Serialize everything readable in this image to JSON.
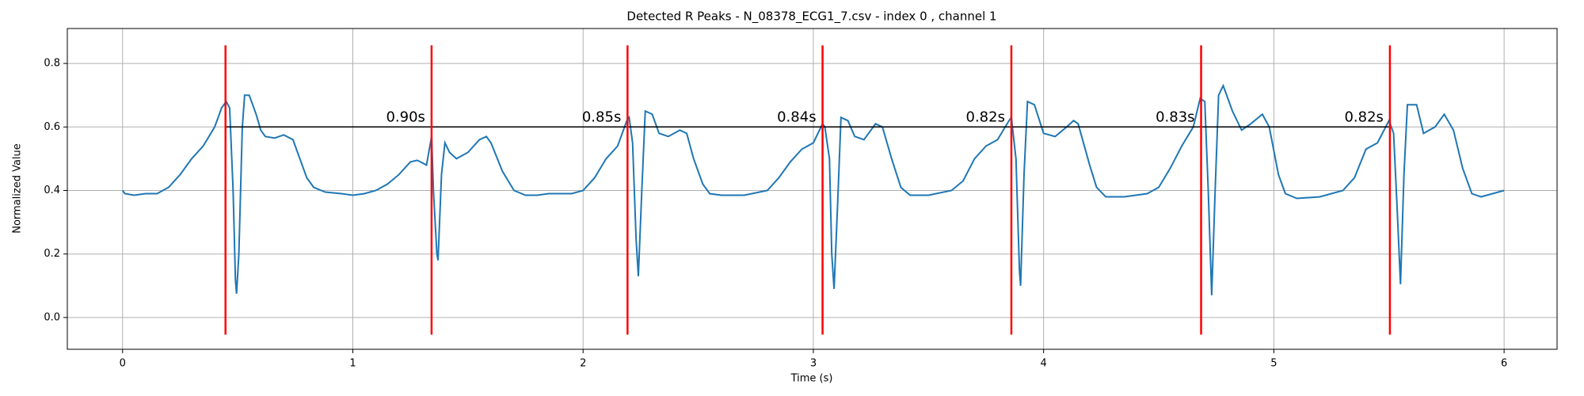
{
  "chart_data": {
    "type": "line",
    "title": "Detected R Peaks - N_08378_ECG1_7.csv - index 0 , channel 1",
    "x_label": "Time (s)",
    "y_label": "Normalized Value",
    "xlim": [
      -0.24,
      6.23
    ],
    "ylim": [
      -0.1,
      0.91
    ],
    "xticks": [
      0,
      1,
      2,
      3,
      4,
      5,
      6
    ],
    "yticks": [
      {
        "value": 0,
        "label": "0.0"
      },
      0.2,
      0.4,
      0.6,
      0.8
    ],
    "grid": true,
    "x": [
      0,
      0.01,
      0.05,
      0.1,
      0.15,
      0.2,
      0.25,
      0.3,
      0.35,
      0.4,
      0.43,
      0.45,
      0.465,
      0.48,
      0.49,
      0.495,
      0.505,
      0.52,
      0.53,
      0.55,
      0.58,
      0.6,
      0.62,
      0.66,
      0.7,
      0.74,
      0.77,
      0.8,
      0.83,
      0.88,
      0.95,
      1.0,
      1.05,
      1.1,
      1.15,
      1.2,
      1.25,
      1.28,
      1.32,
      1.342,
      1.35,
      1.365,
      1.37,
      1.385,
      1.4,
      1.42,
      1.45,
      1.5,
      1.55,
      1.58,
      1.6,
      1.65,
      1.7,
      1.75,
      1.8,
      1.85,
      1.95,
      2.0,
      2.05,
      2.1,
      2.15,
      2.19,
      2.2,
      2.215,
      2.23,
      2.24,
      2.255,
      2.27,
      2.3,
      2.33,
      2.37,
      2.42,
      2.45,
      2.48,
      2.52,
      2.55,
      2.6,
      2.7,
      2.8,
      2.85,
      2.9,
      2.95,
      3.0,
      3.04,
      3.05,
      3.07,
      3.08,
      3.09,
      3.105,
      3.12,
      3.15,
      3.18,
      3.22,
      3.27,
      3.3,
      3.34,
      3.38,
      3.42,
      3.5,
      3.6,
      3.65,
      3.7,
      3.75,
      3.8,
      3.85,
      3.86,
      3.88,
      3.895,
      3.9,
      3.915,
      3.93,
      3.96,
      4.0,
      4.05,
      4.1,
      4.13,
      4.15,
      4.2,
      4.23,
      4.27,
      4.35,
      4.45,
      4.5,
      4.55,
      4.6,
      4.65,
      4.68,
      4.7,
      4.715,
      4.73,
      4.745,
      4.76,
      4.78,
      4.82,
      4.86,
      4.9,
      4.95,
      4.98,
      5.02,
      5.05,
      5.1,
      5.2,
      5.3,
      5.35,
      5.4,
      5.45,
      5.5,
      5.52,
      5.535,
      5.55,
      5.565,
      5.58,
      5.62,
      5.65,
      5.7,
      5.74,
      5.78,
      5.82,
      5.86,
      5.9,
      5.95,
      6.0
    ],
    "series": [
      {
        "color": "#1f77b4",
        "values": [
          0.4,
          0.39,
          0.385,
          0.39,
          0.39,
          0.41,
          0.45,
          0.5,
          0.54,
          0.6,
          0.66,
          0.68,
          0.66,
          0.4,
          0.12,
          0.075,
          0.2,
          0.6,
          0.7,
          0.7,
          0.64,
          0.59,
          0.57,
          0.565,
          0.575,
          0.56,
          0.5,
          0.44,
          0.41,
          0.395,
          0.39,
          0.385,
          0.39,
          0.4,
          0.42,
          0.45,
          0.49,
          0.495,
          0.48,
          0.57,
          0.4,
          0.2,
          0.18,
          0.45,
          0.55,
          0.52,
          0.5,
          0.52,
          0.56,
          0.57,
          0.55,
          0.46,
          0.4,
          0.385,
          0.385,
          0.39,
          0.39,
          0.4,
          0.44,
          0.5,
          0.54,
          0.62,
          0.63,
          0.55,
          0.25,
          0.13,
          0.4,
          0.65,
          0.64,
          0.58,
          0.57,
          0.59,
          0.58,
          0.5,
          0.42,
          0.39,
          0.385,
          0.385,
          0.4,
          0.44,
          0.49,
          0.53,
          0.55,
          0.61,
          0.6,
          0.5,
          0.2,
          0.09,
          0.35,
          0.63,
          0.62,
          0.57,
          0.56,
          0.61,
          0.6,
          0.5,
          0.41,
          0.385,
          0.385,
          0.4,
          0.43,
          0.5,
          0.54,
          0.56,
          0.62,
          0.63,
          0.5,
          0.15,
          0.1,
          0.45,
          0.68,
          0.67,
          0.58,
          0.57,
          0.6,
          0.62,
          0.61,
          0.48,
          0.41,
          0.38,
          0.38,
          0.39,
          0.41,
          0.47,
          0.54,
          0.6,
          0.69,
          0.68,
          0.4,
          0.07,
          0.4,
          0.7,
          0.73,
          0.65,
          0.59,
          0.61,
          0.64,
          0.6,
          0.45,
          0.39,
          0.375,
          0.38,
          0.4,
          0.44,
          0.53,
          0.55,
          0.62,
          0.58,
          0.35,
          0.105,
          0.45,
          0.67,
          0.67,
          0.58,
          0.6,
          0.64,
          0.59,
          0.47,
          0.39,
          0.38,
          0.39,
          0.4
        ]
      }
    ],
    "peaks": [
      0.447,
      1.342,
      2.193,
      3.04,
      3.86,
      4.684,
      5.504
    ],
    "peak_color": "#ff0000",
    "peak_span": [
      -0.054,
      0.857
    ],
    "interval_level": 0.6,
    "interval_labels": [
      "0.90s",
      "0.85s",
      "0.84s",
      "0.82s",
      "0.83s",
      "0.82s"
    ]
  }
}
